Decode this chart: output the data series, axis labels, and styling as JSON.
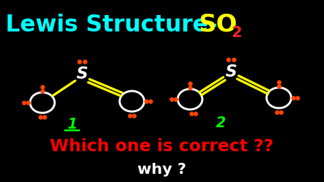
{
  "bg_color": "#000000",
  "title_lewis": "Lewis Structure-",
  "title_so2_so": "SO",
  "title_so2_2": "2",
  "title_lewis_color": "#00ffff",
  "title_so2_color": "#ffff00",
  "title_sub2_color": "#ff2222",
  "question1": "Which one is correct ??",
  "question2": "why ?",
  "q_color": "#ff0000",
  "why_color": "#ffffff",
  "dot_color": "#ff4400",
  "bond_color": "#ffff00",
  "s_color": "#ffffff",
  "o_color": "#ffffff",
  "label1_color": "#00ff00",
  "label2_color": "#00ff00"
}
